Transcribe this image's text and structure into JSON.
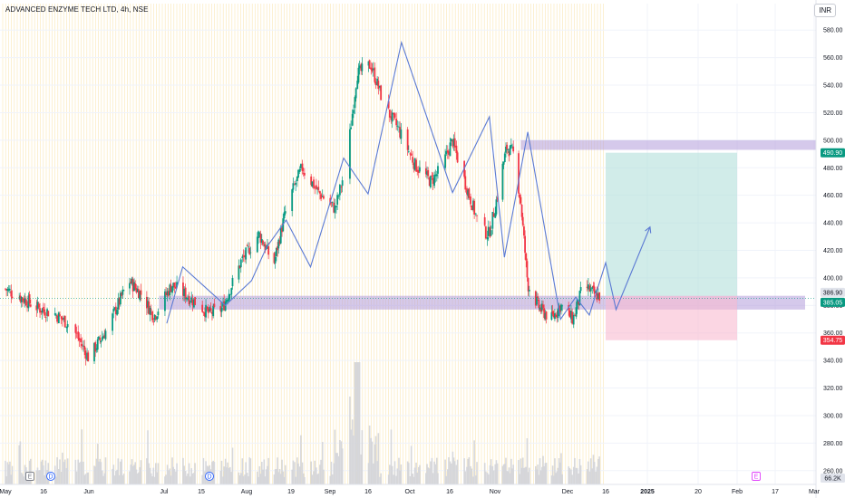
{
  "header": {
    "title": "ADVANCED ENZYME TECH LTD, 4h, NSE",
    "currency": "INR"
  },
  "chart_data": {
    "type": "candlestick",
    "ylim": [
      250,
      590
    ],
    "y_ticks": [
      260,
      280,
      300,
      320,
      340,
      360,
      380,
      400,
      420,
      440,
      460,
      480,
      500,
      520,
      540,
      560,
      580
    ],
    "x_ticks": [
      "May",
      "16",
      "Jun",
      "Jul",
      "15",
      "Aug",
      "19",
      "Sep",
      "16",
      "Oct",
      "16",
      "Nov",
      "Dec",
      "16",
      "2025",
      "20",
      "Feb",
      "17",
      "Mar"
    ],
    "price_tags": {
      "target": "490.90",
      "entry_high": "386.90",
      "last": "385.05",
      "stop": "354.75",
      "volume": "66.2K"
    },
    "close_path": [
      {
        "d": "2024-05-01",
        "v": 392
      },
      {
        "d": "2024-05-08",
        "v": 385
      },
      {
        "d": "2024-05-14",
        "v": 378
      },
      {
        "d": "2024-05-20",
        "v": 374
      },
      {
        "d": "2024-05-26",
        "v": 365
      },
      {
        "d": "2024-06-01",
        "v": 342
      },
      {
        "d": "2024-06-08",
        "v": 362
      },
      {
        "d": "2024-06-12",
        "v": 378
      },
      {
        "d": "2024-06-17",
        "v": 398
      },
      {
        "d": "2024-06-22",
        "v": 388
      },
      {
        "d": "2024-06-27",
        "v": 372
      },
      {
        "d": "2024-07-04",
        "v": 395
      },
      {
        "d": "2024-07-11",
        "v": 385
      },
      {
        "d": "2024-07-18",
        "v": 374
      },
      {
        "d": "2024-07-23",
        "v": 378
      },
      {
        "d": "2024-07-30",
        "v": 412
      },
      {
        "d": "2024-08-06",
        "v": 432
      },
      {
        "d": "2024-08-12",
        "v": 410
      },
      {
        "d": "2024-08-17",
        "v": 450
      },
      {
        "d": "2024-08-23",
        "v": 480
      },
      {
        "d": "2024-08-29",
        "v": 462
      },
      {
        "d": "2024-09-04",
        "v": 450
      },
      {
        "d": "2024-09-08",
        "v": 482
      },
      {
        "d": "2024-09-12",
        "v": 548
      },
      {
        "d": "2024-09-17",
        "v": 555
      },
      {
        "d": "2024-09-22",
        "v": 525
      },
      {
        "d": "2024-09-27",
        "v": 508
      },
      {
        "d": "2024-10-03",
        "v": 482
      },
      {
        "d": "2024-10-09",
        "v": 470
      },
      {
        "d": "2024-10-13",
        "v": 480
      },
      {
        "d": "2024-10-17",
        "v": 500
      },
      {
        "d": "2024-10-22",
        "v": 466
      },
      {
        "d": "2024-10-27",
        "v": 435
      },
      {
        "d": "2024-10-30",
        "v": 432
      },
      {
        "d": "2024-11-03",
        "v": 470
      },
      {
        "d": "2024-11-06",
        "v": 495
      },
      {
        "d": "2024-11-09",
        "v": 490
      },
      {
        "d": "2024-11-12",
        "v": 455
      },
      {
        "d": "2024-11-15",
        "v": 395
      },
      {
        "d": "2024-11-20",
        "v": 378
      },
      {
        "d": "2024-11-25",
        "v": 370
      },
      {
        "d": "2024-11-29",
        "v": 380
      },
      {
        "d": "2024-12-04",
        "v": 370
      },
      {
        "d": "2024-12-08",
        "v": 395
      },
      {
        "d": "2024-12-12",
        "v": 388
      },
      {
        "d": "2024-12-16",
        "v": 385
      }
    ],
    "wave_lines": [
      [
        [
          "2024-07-02",
          367
        ],
        [
          "2024-07-08",
          408
        ],
        [
          "2024-07-24",
          380
        ],
        [
          "2024-08-03",
          398
        ],
        [
          "2024-08-09",
          422
        ],
        [
          "2024-08-17",
          442
        ],
        [
          "2024-08-26",
          408
        ],
        [
          "2024-09-07",
          487
        ],
        [
          "2024-09-16",
          461
        ],
        [
          "2024-09-28",
          571
        ],
        [
          "2024-10-17",
          462
        ],
        [
          "2024-10-30",
          517
        ],
        [
          "2024-11-05",
          415
        ],
        [
          "2024-11-15",
          506
        ],
        [
          "2024-11-29",
          370
        ],
        [
          "2024-12-05",
          386
        ],
        [
          "2024-12-10",
          373
        ],
        [
          "2024-12-16",
          411
        ],
        [
          "2024-12-20",
          377
        ],
        [
          "2025-01-02",
          437
        ]
      ]
    ],
    "volume_peak_date": "2024-09-12",
    "event_markers": [
      "E",
      "D",
      "D",
      "E"
    ],
    "zones": {
      "resistance": [
        493,
        500
      ],
      "support": [
        377,
        387
      ],
      "target_zone": [
        386.9,
        490.9
      ],
      "stop_zone": [
        354.75,
        386.9
      ]
    }
  }
}
